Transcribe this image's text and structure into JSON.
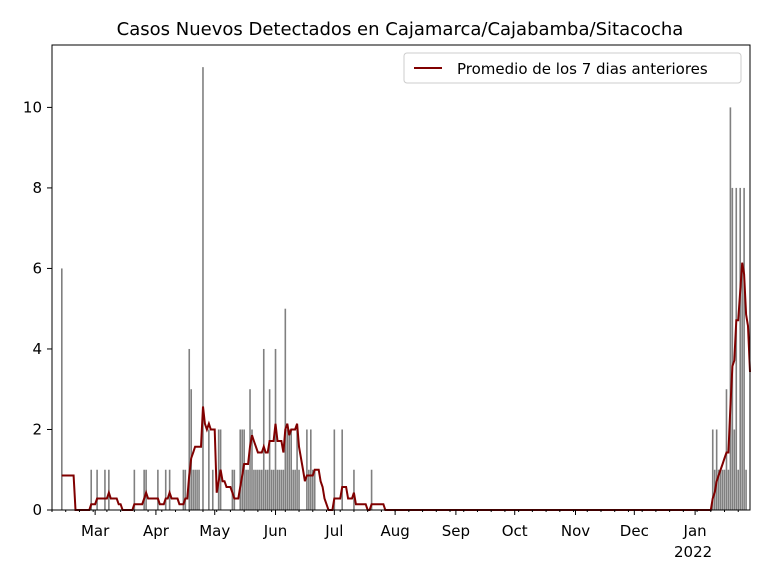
{
  "chart_data": {
    "type": "bar",
    "title": "Casos Nuevos Detectados en Cajamarca/Cajabamba/Sitacocha",
    "xlabel": "",
    "ylabel": "",
    "xlim": [
      "2021-02-07",
      "2022-01-29"
    ],
    "ylim": [
      0,
      11.55
    ],
    "yticks": [
      0,
      2,
      4,
      6,
      8,
      10
    ],
    "xticks": [
      {
        "date": "2021-03-01",
        "label": "Mar"
      },
      {
        "date": "2021-04-01",
        "label": "Apr"
      },
      {
        "date": "2021-05-01",
        "label": "May"
      },
      {
        "date": "2021-06-01",
        "label": "Jun"
      },
      {
        "date": "2021-07-01",
        "label": "Jul"
      },
      {
        "date": "2021-08-01",
        "label": "Aug"
      },
      {
        "date": "2021-09-01",
        "label": "Sep"
      },
      {
        "date": "2021-10-01",
        "label": "Oct"
      },
      {
        "date": "2021-11-01",
        "label": "Nov"
      },
      {
        "date": "2021-12-01",
        "label": "Dec"
      },
      {
        "date": "2022-01-01",
        "label": "Jan",
        "sublabel": "2022"
      }
    ],
    "grid": false,
    "legend_position": "top-right",
    "bar_color": "#808080",
    "line_color": "#800000",
    "series": [
      {
        "kind": "bar",
        "description": "daily new cases, days not listed are 0",
        "data": [
          [
            "2021-02-12",
            6
          ],
          [
            "2021-02-27",
            1
          ],
          [
            "2021-03-02",
            1
          ],
          [
            "2021-03-06",
            1
          ],
          [
            "2021-03-08",
            1
          ],
          [
            "2021-03-21",
            1
          ],
          [
            "2021-03-26",
            1
          ],
          [
            "2021-03-27",
            1
          ],
          [
            "2021-04-02",
            1
          ],
          [
            "2021-04-06",
            1
          ],
          [
            "2021-04-08",
            1
          ],
          [
            "2021-04-15",
            1
          ],
          [
            "2021-04-16",
            1
          ],
          [
            "2021-04-18",
            4
          ],
          [
            "2021-04-19",
            3
          ],
          [
            "2021-04-20",
            1
          ],
          [
            "2021-04-21",
            1
          ],
          [
            "2021-04-22",
            1
          ],
          [
            "2021-04-23",
            1
          ],
          [
            "2021-04-25",
            11
          ],
          [
            "2021-04-28",
            2
          ],
          [
            "2021-04-30",
            1
          ],
          [
            "2021-05-03",
            2
          ],
          [
            "2021-05-04",
            2
          ],
          [
            "2021-05-10",
            1
          ],
          [
            "2021-05-11",
            1
          ],
          [
            "2021-05-14",
            2
          ],
          [
            "2021-05-15",
            2
          ],
          [
            "2021-05-16",
            2
          ],
          [
            "2021-05-17",
            1
          ],
          [
            "2021-05-18",
            1
          ],
          [
            "2021-05-19",
            3
          ],
          [
            "2021-05-20",
            2
          ],
          [
            "2021-05-21",
            1
          ],
          [
            "2021-05-22",
            1
          ],
          [
            "2021-05-23",
            1
          ],
          [
            "2021-05-24",
            1
          ],
          [
            "2021-05-25",
            1
          ],
          [
            "2021-05-26",
            4
          ],
          [
            "2021-05-27",
            1
          ],
          [
            "2021-05-28",
            1
          ],
          [
            "2021-05-29",
            3
          ],
          [
            "2021-05-30",
            1
          ],
          [
            "2021-05-31",
            1
          ],
          [
            "2021-06-01",
            4
          ],
          [
            "2021-06-02",
            1
          ],
          [
            "2021-06-03",
            1
          ],
          [
            "2021-06-04",
            1
          ],
          [
            "2021-06-05",
            1
          ],
          [
            "2021-06-06",
            5
          ],
          [
            "2021-06-07",
            2
          ],
          [
            "2021-06-08",
            2
          ],
          [
            "2021-06-09",
            2
          ],
          [
            "2021-06-10",
            1
          ],
          [
            "2021-06-11",
            1
          ],
          [
            "2021-06-12",
            2
          ],
          [
            "2021-06-13",
            1
          ],
          [
            "2021-06-17",
            2
          ],
          [
            "2021-06-18",
            1
          ],
          [
            "2021-06-19",
            2
          ],
          [
            "2021-06-20",
            1
          ],
          [
            "2021-06-21",
            1
          ],
          [
            "2021-07-01",
            2
          ],
          [
            "2021-07-05",
            2
          ],
          [
            "2021-07-11",
            1
          ],
          [
            "2021-07-20",
            1
          ],
          [
            "2022-01-10",
            2
          ],
          [
            "2022-01-11",
            1
          ],
          [
            "2022-01-12",
            2
          ],
          [
            "2022-01-13",
            1
          ],
          [
            "2022-01-14",
            1
          ],
          [
            "2022-01-15",
            1
          ],
          [
            "2022-01-16",
            1
          ],
          [
            "2022-01-17",
            3
          ],
          [
            "2022-01-18",
            1
          ],
          [
            "2022-01-19",
            10
          ],
          [
            "2022-01-20",
            8
          ],
          [
            "2022-01-21",
            2
          ],
          [
            "2022-01-22",
            8
          ],
          [
            "2022-01-23",
            1
          ],
          [
            "2022-01-24",
            8
          ],
          [
            "2022-01-25",
            6
          ],
          [
            "2022-01-26",
            8
          ],
          [
            "2022-01-27",
            1
          ]
        ]
      },
      {
        "kind": "line",
        "name": "Promedio de los 7 dias anteriores",
        "window_days": 7
      }
    ]
  }
}
